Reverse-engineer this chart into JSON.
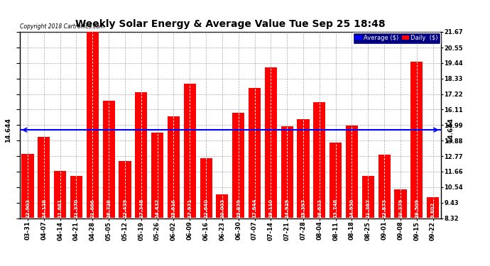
{
  "title": "Weekly Solar Energy & Average Value Tue Sep 25 18:48",
  "copyright": "Copyright 2018 Cartronics.com",
  "average_label": "14.644",
  "average_value": 14.644,
  "bar_color": "#FF0000",
  "average_line_color": "#0000FF",
  "background_color": "#FFFFFF",
  "plot_bg_color": "#FFFFFF",
  "categories": [
    "03-31",
    "04-07",
    "04-14",
    "04-21",
    "04-28",
    "05-05",
    "05-12",
    "05-19",
    "05-26",
    "06-02",
    "06-09",
    "06-16",
    "06-23",
    "06-30",
    "07-07",
    "07-14",
    "07-21",
    "07-28",
    "08-04",
    "08-11",
    "08-18",
    "08-25",
    "09-01",
    "09-08",
    "09-15",
    "09-22"
  ],
  "values": [
    12.903,
    14.128,
    11.681,
    11.37,
    21.666,
    16.728,
    12.439,
    17.348,
    14.432,
    15.616,
    17.971,
    12.64,
    10.003,
    15.879,
    17.644,
    19.11,
    14.929,
    15.397,
    16.633,
    13.748,
    14.95,
    11.367,
    12.873,
    10.379,
    19.509,
    9.802
  ],
  "yticks": [
    8.32,
    9.43,
    10.54,
    11.66,
    12.77,
    13.88,
    14.99,
    16.11,
    17.22,
    18.33,
    19.44,
    20.55,
    21.67
  ],
  "ylim": [
    8.32,
    21.67
  ],
  "legend_avg_color": "#0000FF",
  "legend_daily_color": "#FF0000",
  "legend_avg_text": "Average ($)",
  "legend_daily_text": "Daily  ($)",
  "arrow_color": "#0000FF",
  "grid_color": "#888888",
  "title_fontsize": 10,
  "label_fontsize": 6,
  "bar_label_fontsize": 5,
  "avg_label_fontsize": 6.5,
  "bar_bottom": 8.32
}
